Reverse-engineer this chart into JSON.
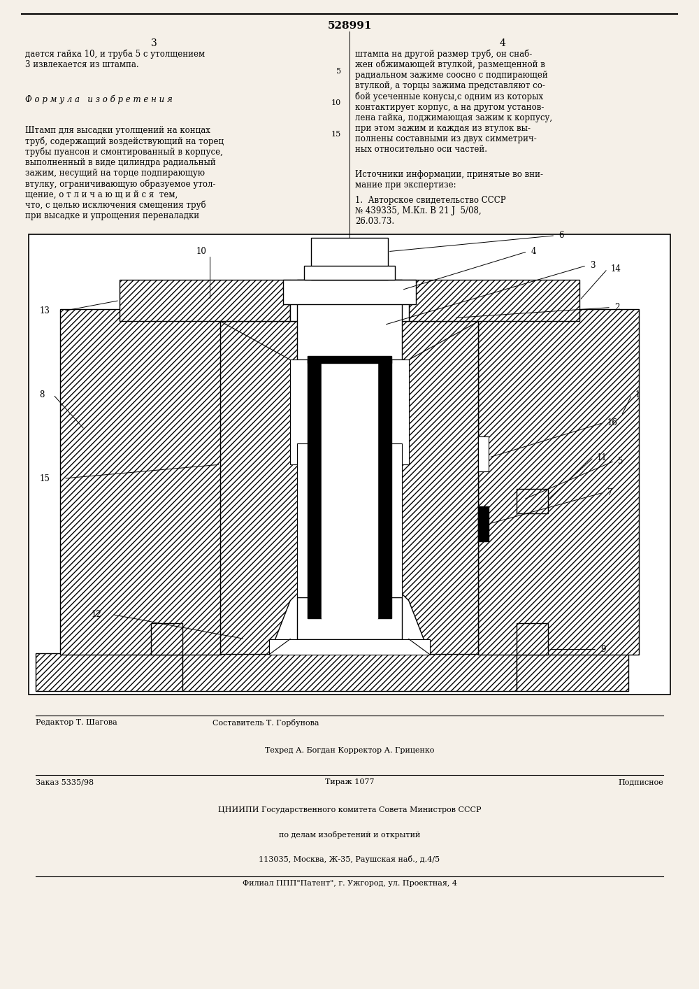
{
  "patent_number": "528991",
  "col_left": "3",
  "col_right": "4",
  "text_top_left": "дается гайка 10, и труба 5 с утолщением\n3 извлекается из штампа.",
  "formula_header": "Ф о р м у л а   и з о б р е т е н и я",
  "text_formula": "Штамп для высадки утолщений на концах\nтруб, содержащий воздействующий на торец\nтрубы пуансон и смонтированный в корпусе,\nвыполненный в виде цилиндра радиальный\nзажим, несущий на торце подпирающую\nвтулку, ограничивающую образуемое утол-\nщение, о т л и ч а ю щ и й с я  тем,\nчто, с целью исключения смещения труб\nпри высадке и упрощения переналадки",
  "col_number_right": "5\n10\n15",
  "text_top_right": "штампа на другой размер труб, он снаб-\nжен обжимающей втулкой, размещенной в\nрадиальном зажиме соосно с подпирающей\nвтулкой, а торцы зажима представляют со-\nбой усеченные конусы,с одним из которых\nконтактирует корпус, а на другом установ-\nлена гайка, поджимающая зажим к корпусу,\nпри этом зажим и каждая из втулок вы-\nполнены составными из двух симметрич-\nных относительно оси частей.",
  "sources_header": "Источники информации, принятые во вни-\nмание при экспертизе:",
  "source1": "1.  Авторское свидетельство СССР\n№ 439335, М.Кл. В 21 J  5/08,\n26.03.73.",
  "footer_editor": "Редактор Т. Шагова",
  "footer_compiler": "Составитель Т. Горбунова",
  "footer_techred": "Техред А. Богдан Корректор А. Гриценко",
  "footer_order": "Заказ 5335/98",
  "footer_print": "Тираж 1077",
  "footer_subscription": "Подписное",
  "footer_org": "ЦНИИПИ Государственного комитета Совета Министров СССР",
  "footer_org2": "по делам изобретений и открытий",
  "footer_address": "113035, Москва, Ж-35, Раушская наб., д.4/5",
  "footer_branch": "Филиал ППП\"Патент\", г. Ужгород, ул. Проектная, 4",
  "bg_color": "#f5f0e8",
  "text_color": "#000000",
  "diagram_labels": [
    "1",
    "2",
    "3",
    "4",
    "5",
    "6",
    "7",
    "8",
    "9",
    "10",
    "11",
    "12",
    "13",
    "14",
    "15",
    "16"
  ]
}
